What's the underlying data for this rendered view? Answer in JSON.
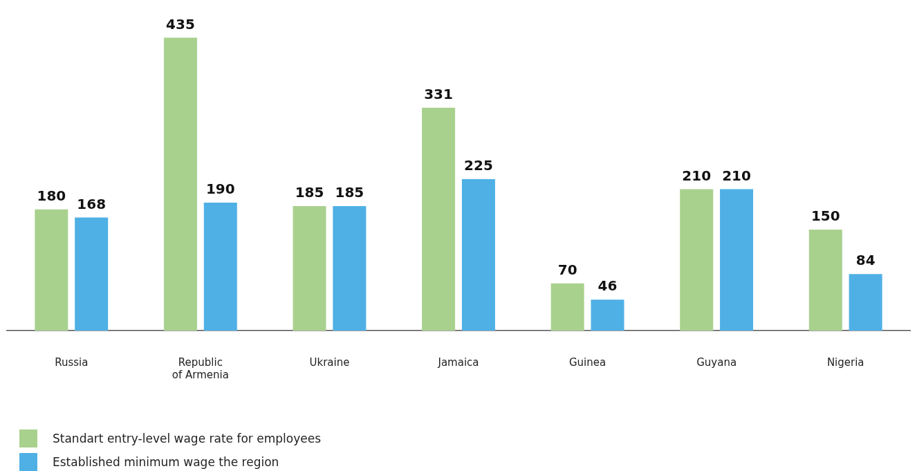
{
  "chart_data": {
    "type": "bar",
    "categories": [
      "Russia",
      "Republic of Armenia",
      "Ukraine",
      "Jamaica",
      "Guinea",
      "Guyana",
      "Nigeria"
    ],
    "series": [
      {
        "name": "Standart entry-level wage rate for employees",
        "color": "#a9d18e",
        "values": [
          180,
          435,
          185,
          331,
          70,
          210,
          150
        ]
      },
      {
        "name": "Established minimum wage the region",
        "color": "#4fb0e5",
        "values": [
          168,
          190,
          185,
          225,
          46,
          210,
          84
        ]
      }
    ],
    "data_labels": true,
    "grid": false,
    "legend": "bottom left"
  }
}
